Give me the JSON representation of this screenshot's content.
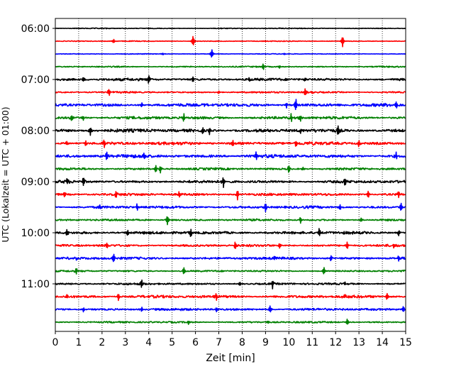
{
  "chart_data": {
    "type": "line",
    "title": "",
    "xlabel": "Zeit  [min]",
    "ylabel": "UTC (Lokalzeit = UTC + 01:00)",
    "xlim": [
      0,
      15
    ],
    "x_ticks": [
      "0",
      "1",
      "2",
      "3",
      "4",
      "5",
      "6",
      "7",
      "8",
      "9",
      "10",
      "11",
      "12",
      "13",
      "14",
      "15"
    ],
    "y_ticks": [
      "06:00",
      "07:00",
      "08:00",
      "09:00",
      "10:00",
      "11:00"
    ],
    "grid": "vertical dotted at each minute",
    "trace_colors": [
      "#000000",
      "#ff0000",
      "#0000ff",
      "#008000"
    ],
    "traces": [
      {
        "start": "06:00",
        "color": "#000000",
        "noise": 0.6,
        "spikes": [
          [
            2.2,
            0.5
          ],
          [
            7.1,
            0.5
          ],
          [
            9.6,
            0.5
          ]
        ]
      },
      {
        "start": "06:15",
        "color": "#ff0000",
        "noise": 0.6,
        "spikes": [
          [
            2.5,
            3.0
          ],
          [
            5.9,
            8.0
          ],
          [
            12.3,
            8.0
          ],
          [
            9.0,
            1.0
          ]
        ]
      },
      {
        "start": "06:30",
        "color": "#0000ff",
        "noise": 0.5,
        "spikes": [
          [
            4.6,
            1.5
          ],
          [
            6.7,
            7.0
          ],
          [
            9.8,
            1.0
          ]
        ]
      },
      {
        "start": "06:45",
        "color": "#008000",
        "noise": 0.9,
        "spikes": [
          [
            8.9,
            5.0
          ],
          [
            9.6,
            2.0
          ]
        ]
      },
      {
        "start": "07:00",
        "color": "#000000",
        "noise": 1.8,
        "spikes": [
          [
            1.2,
            3.0
          ],
          [
            4.0,
            8.0
          ],
          [
            5.9,
            3.0
          ],
          [
            8.3,
            3.0
          ],
          [
            10.7,
            3.0
          ]
        ]
      },
      {
        "start": "07:15",
        "color": "#ff0000",
        "noise": 1.2,
        "spikes": [
          [
            2.3,
            6.0
          ],
          [
            7.0,
            2.0
          ],
          [
            10.7,
            6.0
          ],
          [
            11.0,
            2.0
          ]
        ]
      },
      {
        "start": "07:30",
        "color": "#0000ff",
        "noise": 2.2,
        "spikes": [
          [
            3.7,
            4.0
          ],
          [
            6.4,
            3.0
          ],
          [
            9.9,
            4.0
          ],
          [
            10.3,
            10.0
          ],
          [
            14.6,
            4.0
          ]
        ]
      },
      {
        "start": "07:45",
        "color": "#008000",
        "noise": 2.0,
        "spikes": [
          [
            0.7,
            5.0
          ],
          [
            1.2,
            3.0
          ],
          [
            5.5,
            6.0
          ],
          [
            10.1,
            6.0
          ],
          [
            10.5,
            6.0
          ]
        ]
      },
      {
        "start": "08:00",
        "color": "#000000",
        "noise": 2.4,
        "spikes": [
          [
            1.5,
            6.0
          ],
          [
            6.3,
            5.0
          ],
          [
            6.6,
            6.0
          ],
          [
            12.1,
            6.0
          ],
          [
            10.5,
            3.0
          ]
        ]
      },
      {
        "start": "08:15",
        "color": "#ff0000",
        "noise": 2.2,
        "spikes": [
          [
            0.5,
            3.0
          ],
          [
            1.3,
            4.0
          ],
          [
            2.1,
            6.0
          ],
          [
            7.6,
            5.0
          ],
          [
            10.3,
            4.0
          ],
          [
            13.0,
            6.0
          ]
        ]
      },
      {
        "start": "08:30",
        "color": "#0000ff",
        "noise": 2.4,
        "spikes": [
          [
            2.2,
            6.0
          ],
          [
            3.8,
            6.0
          ],
          [
            8.6,
            6.0
          ],
          [
            14.6,
            5.0
          ]
        ]
      },
      {
        "start": "08:45",
        "color": "#008000",
        "noise": 1.6,
        "spikes": [
          [
            4.3,
            5.0
          ],
          [
            4.5,
            5.0
          ],
          [
            10.0,
            6.0
          ],
          [
            10.6,
            3.0
          ]
        ]
      },
      {
        "start": "09:00",
        "color": "#000000",
        "noise": 2.0,
        "spikes": [
          [
            0.5,
            4.0
          ],
          [
            1.2,
            6.0
          ],
          [
            7.2,
            7.0
          ],
          [
            12.4,
            6.0
          ]
        ]
      },
      {
        "start": "09:15",
        "color": "#ff0000",
        "noise": 1.8,
        "spikes": [
          [
            0.4,
            4.0
          ],
          [
            2.6,
            5.0
          ],
          [
            5.3,
            4.0
          ],
          [
            7.8,
            7.0
          ],
          [
            13.4,
            6.0
          ],
          [
            14.7,
            4.0
          ]
        ]
      },
      {
        "start": "09:30",
        "color": "#0000ff",
        "noise": 1.8,
        "spikes": [
          [
            1.9,
            3.0
          ],
          [
            3.5,
            6.0
          ],
          [
            9.0,
            7.0
          ],
          [
            12.2,
            4.0
          ],
          [
            14.8,
            6.0
          ]
        ]
      },
      {
        "start": "09:45",
        "color": "#008000",
        "noise": 1.4,
        "spikes": [
          [
            4.8,
            7.0
          ],
          [
            10.5,
            5.0
          ],
          [
            13.1,
            3.0
          ]
        ]
      },
      {
        "start": "10:00",
        "color": "#000000",
        "noise": 2.0,
        "spikes": [
          [
            0.5,
            6.0
          ],
          [
            3.1,
            5.0
          ],
          [
            5.8,
            7.0
          ],
          [
            11.3,
            6.0
          ],
          [
            14.7,
            4.0
          ]
        ]
      },
      {
        "start": "10:15",
        "color": "#ff0000",
        "noise": 1.6,
        "spikes": [
          [
            2.2,
            4.0
          ],
          [
            7.7,
            6.0
          ],
          [
            9.6,
            4.0
          ],
          [
            12.5,
            6.0
          ],
          [
            14.5,
            3.0
          ]
        ]
      },
      {
        "start": "10:30",
        "color": "#0000ff",
        "noise": 1.8,
        "spikes": [
          [
            0.9,
            3.0
          ],
          [
            2.5,
            7.0
          ],
          [
            9.4,
            5.0
          ],
          [
            11.8,
            4.0
          ],
          [
            14.7,
            5.0
          ]
        ]
      },
      {
        "start": "10:45",
        "color": "#008000",
        "noise": 1.2,
        "spikes": [
          [
            0.9,
            4.0
          ],
          [
            5.5,
            6.0
          ],
          [
            11.5,
            6.0
          ]
        ]
      },
      {
        "start": "11:00",
        "color": "#000000",
        "noise": 1.4,
        "spikes": [
          [
            3.7,
            6.0
          ],
          [
            9.3,
            6.0
          ],
          [
            7.9,
            3.0
          ],
          [
            12.4,
            3.0
          ]
        ]
      },
      {
        "start": "11:15",
        "color": "#ff0000",
        "noise": 2.0,
        "spikes": [
          [
            0.5,
            4.0
          ],
          [
            2.7,
            5.0
          ],
          [
            6.9,
            6.0
          ],
          [
            12.4,
            3.0
          ],
          [
            14.2,
            5.0
          ]
        ]
      },
      {
        "start": "11:30",
        "color": "#0000ff",
        "noise": 1.6,
        "spikes": [
          [
            1.2,
            3.0
          ],
          [
            3.7,
            3.0
          ],
          [
            6.9,
            3.0
          ],
          [
            9.2,
            6.0
          ],
          [
            14.9,
            5.0
          ]
        ]
      },
      {
        "start": "11:45",
        "color": "#008000",
        "noise": 1.2,
        "spikes": [
          [
            5.7,
            3.0
          ],
          [
            9.1,
            2.0
          ],
          [
            12.5,
            5.0
          ]
        ]
      }
    ]
  }
}
